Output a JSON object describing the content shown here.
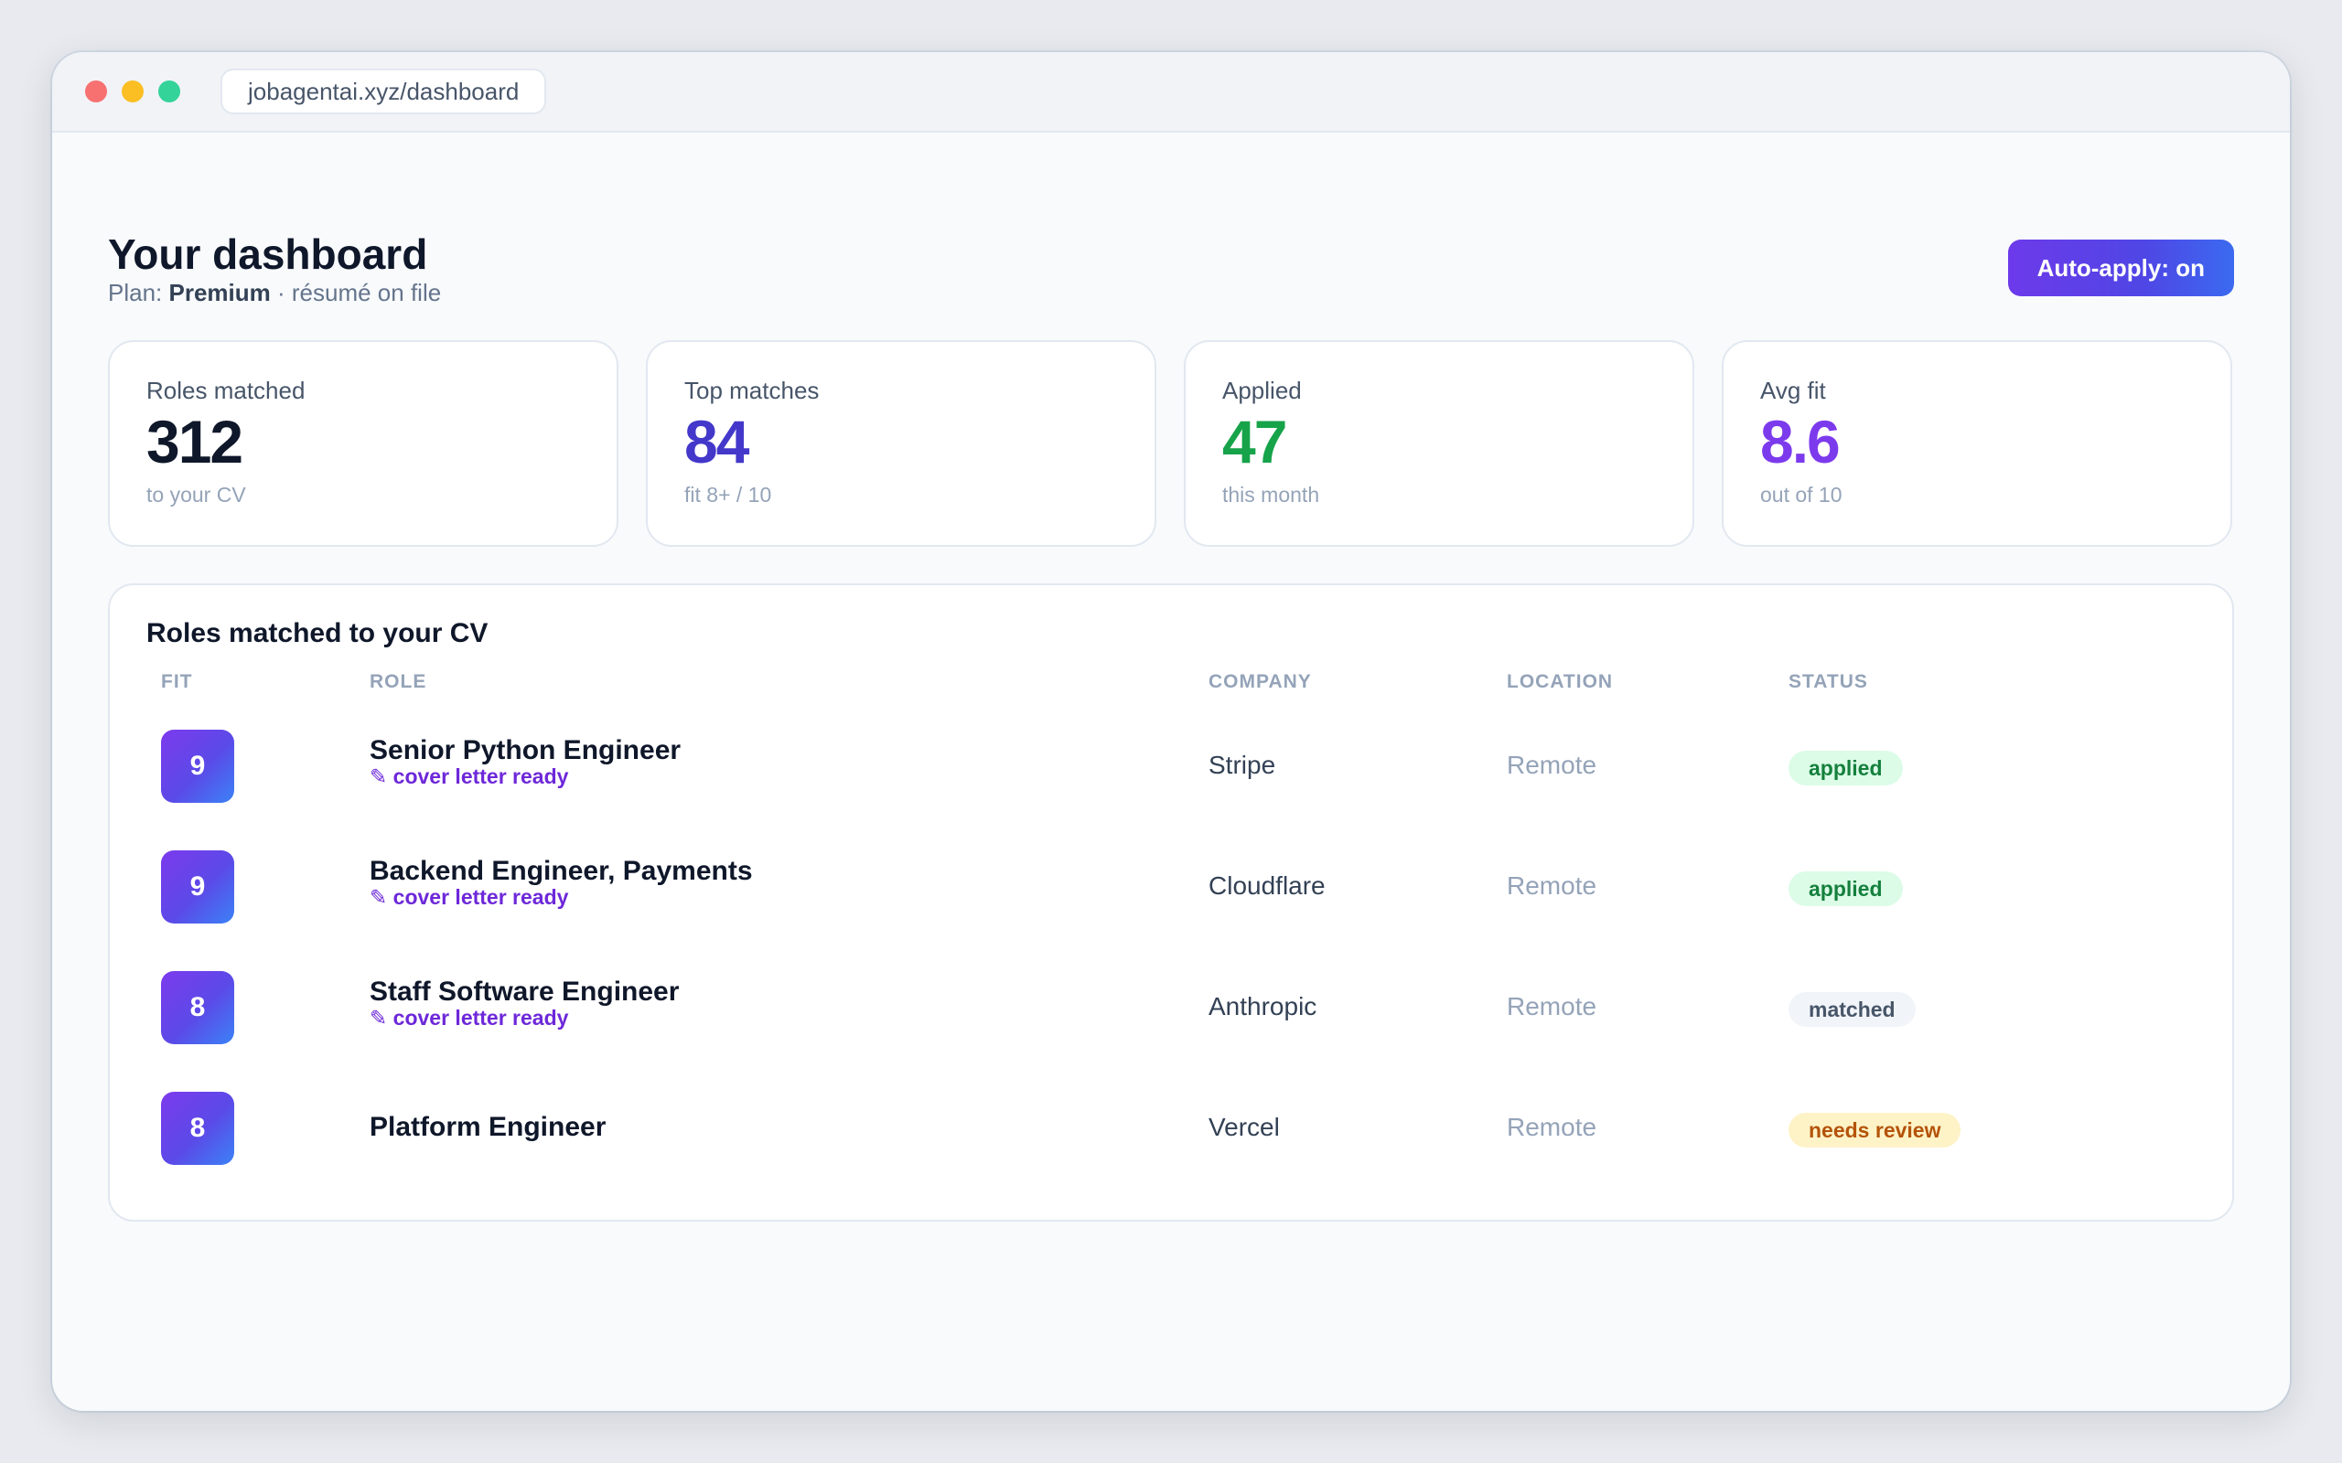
{
  "browser": {
    "url": "jobagentai.xyz/dashboard"
  },
  "header": {
    "title": "Your dashboard",
    "plan_prefix": "Plan:",
    "plan_name": "Premium",
    "plan_suffix": "· résumé on file",
    "auto_apply_label": "Auto-apply: on"
  },
  "stats": [
    {
      "label": "Roles matched",
      "value": "312",
      "note": "to your CV",
      "color": "#0f172a"
    },
    {
      "label": "Top matches",
      "value": "84",
      "note": "fit 8+ / 10",
      "color": "#4338ca"
    },
    {
      "label": "Applied",
      "value": "47",
      "note": "this month",
      "color": "#16a34a"
    },
    {
      "label": "Avg fit",
      "value": "8.6",
      "note": "out of 10",
      "color": "#7c3aed"
    }
  ],
  "table": {
    "title": "Roles matched to your CV",
    "columns": {
      "fit": "FIT",
      "role": "ROLE",
      "company": "COMPANY",
      "location": "LOCATION",
      "status": "STATUS"
    },
    "rows": [
      {
        "fit": "9",
        "role": "Senior Python Engineer",
        "note": "✎ cover letter ready",
        "company": "Stripe",
        "location": "Remote",
        "status": "applied"
      },
      {
        "fit": "9",
        "role": "Backend Engineer, Payments",
        "note": "✎ cover letter ready",
        "company": "Cloudflare",
        "location": "Remote",
        "status": "applied"
      },
      {
        "fit": "8",
        "role": "Staff Software Engineer",
        "note": "✎ cover letter ready",
        "company": "Anthropic",
        "location": "Remote",
        "status": "matched"
      },
      {
        "fit": "8",
        "role": "Platform Engineer",
        "note": "",
        "company": "Vercel",
        "location": "Remote",
        "status": "needs review"
      }
    ]
  }
}
